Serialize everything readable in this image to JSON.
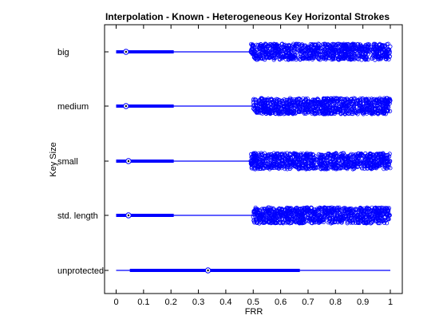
{
  "chart_data": {
    "type": "boxplot",
    "orientation": "horizontal",
    "title": "Interpolation - Known - Heterogeneous Key Horizontal Strokes",
    "xlabel": "FRR",
    "ylabel": "Key Size",
    "xlim": [
      -0.04,
      1.04
    ],
    "xticks": [
      0,
      0.1,
      0.2,
      0.3,
      0.4,
      0.5,
      0.6,
      0.7,
      0.8,
      0.9,
      1
    ],
    "xtick_labels": [
      "0",
      "0.1",
      "0.2",
      "0.3",
      "0.4",
      "0.5",
      "0.6",
      "0.7",
      "0.8",
      "0.9",
      "1"
    ],
    "grid": false,
    "color": "#0000ff",
    "categories": [
      "big",
      "medium",
      "small",
      "std. length",
      "unprotected"
    ],
    "boxes": [
      {
        "label": "big",
        "q1": 0.0,
        "median": 0.036,
        "q3": 0.21,
        "whisker_low": 0.0,
        "whisker_high": 0.49,
        "outliers_from": 0.49,
        "outliers_to": 1.0
      },
      {
        "label": "medium",
        "q1": 0.0,
        "median": 0.036,
        "q3": 0.21,
        "whisker_low": 0.0,
        "whisker_high": 0.5,
        "outliers_from": 0.5,
        "outliers_to": 1.0
      },
      {
        "label": "small",
        "q1": 0.0,
        "median": 0.045,
        "q3": 0.21,
        "whisker_low": 0.0,
        "whisker_high": 0.49,
        "outliers_from": 0.49,
        "outliers_to": 1.0
      },
      {
        "label": "std. length",
        "q1": 0.0,
        "median": 0.045,
        "q3": 0.21,
        "whisker_low": 0.0,
        "whisker_high": 0.5,
        "outliers_from": 0.5,
        "outliers_to": 1.0
      },
      {
        "label": "unprotected",
        "q1": 0.05,
        "median": 0.335,
        "q3": 0.67,
        "whisker_low": 0.0,
        "whisker_high": 1.0,
        "outliers_from": null,
        "outliers_to": null
      }
    ]
  }
}
